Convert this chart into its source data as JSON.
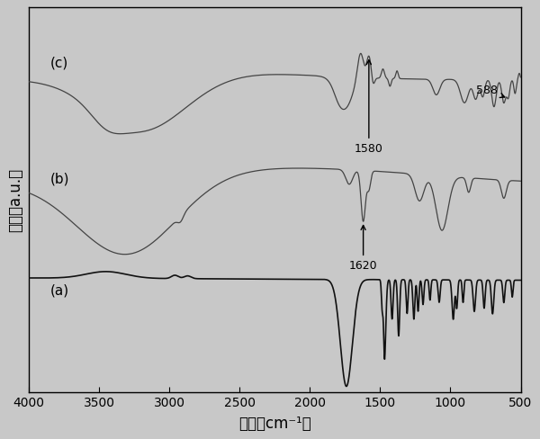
{
  "xlabel": "波数（cm⁻¹）",
  "ylabel": "强度（a.u.）",
  "xlim": [
    4000,
    500
  ],
  "background_color": "#c8c8c8",
  "line_color_a": "#111111",
  "line_color_bc": "#444444",
  "label_a": "(a)",
  "label_b": "(b)",
  "label_c": "(c)",
  "annotation_1580": "1580",
  "annotation_588": "588",
  "annotation_1620": "1620",
  "tick_fontsize": 10,
  "axis_label_fontsize": 12
}
